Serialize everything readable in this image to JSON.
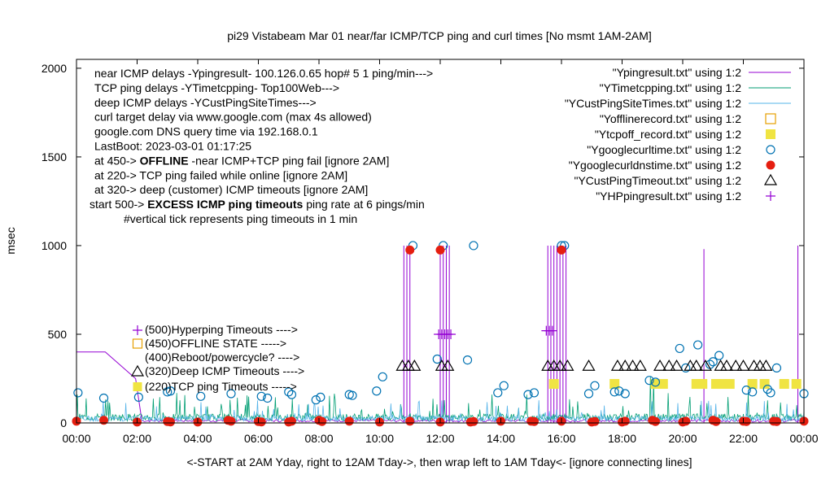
{
  "chart_data": {
    "type": "line",
    "title": "pi29 Vistabeam Mar 01  near/far ICMP/TCP ping and curl times [No msmt 1AM-2AM]",
    "xlabel": "<-START at 2AM Yday, right to 12AM Tday->, then wrap left to 1AM Tday<- [ignore connecting lines]",
    "ylabel": "msec",
    "xlim": [
      0,
      24
    ],
    "ylim": [
      0,
      2050
    ],
    "x_ticks": [
      "00:00",
      "02:00",
      "04:00",
      "06:00",
      "08:00",
      "10:00",
      "12:00",
      "14:00",
      "16:00",
      "18:00",
      "20:00",
      "22:00",
      "00:00"
    ],
    "y_ticks": [
      0,
      500,
      1000,
      1500,
      2000
    ],
    "info_lines": [
      {
        "text": "near ICMP delays -Ypingresult- 100.126.0.65 hop# 5 1 ping/min--->"
      },
      {
        "text": "TCP ping delays -YTimetcpping- Top100Web--->"
      },
      {
        "text": "deep ICMP delays -YCustPingSiteTimes--->"
      },
      {
        "text": "curl target delay via www.google.com (max 4s allowed)"
      },
      {
        "text": "google.com DNS query time via 192.168.0.1"
      },
      {
        "text": "LastBoot: 2023-03-01 01:17:25"
      },
      {
        "pre": "at 450-> ",
        "bold": "OFFLINE",
        "post": " -near ICMP+TCP ping fail [ignore 2AM]"
      },
      {
        "text": "at 220-> TCP ping failed while online [ignore 2AM]"
      },
      {
        "text": "at 320-> deep (customer) ICMP timeouts [ignore 2AM]"
      },
      {
        "pre": "start 500-> ",
        "bold": "EXCESS ICMP ping timeouts",
        "post": "  ping rate at 6 pings/min"
      },
      {
        "text": "#vertical tick represents ping timeouts in 1 min"
      }
    ],
    "level_labels": [
      {
        "label": "(500)Hyperping Timeouts ---->"
      },
      {
        "label": "(450)OFFLINE STATE ----->"
      },
      {
        "label": "(400)Reboot/powercycle? ---->"
      },
      {
        "label": "(320)Deep ICMP Timeouts ---->"
      },
      {
        "label": "(220)TCP ping Timeouts ----->"
      }
    ],
    "legend_position": "top-right",
    "series": [
      {
        "name": "\"Ypingresult.txt\" using 1:2",
        "color": "#9400d3",
        "style": "line",
        "baseline": 10,
        "segments": [
          {
            "x": [
              0,
              0.95,
              1.95,
              2.15
            ],
            "y": [
              400,
              400,
              250,
              20
            ]
          }
        ],
        "spikes": [
          {
            "x": 10.8,
            "y": 1000
          },
          {
            "x": 10.9,
            "y": 1000
          },
          {
            "x": 11.0,
            "y": 980
          },
          {
            "x": 12.0,
            "y": 1000
          },
          {
            "x": 12.1,
            "y": 1000
          },
          {
            "x": 12.2,
            "y": 1000
          },
          {
            "x": 12.3,
            "y": 1000
          },
          {
            "x": 15.55,
            "y": 1000
          },
          {
            "x": 15.65,
            "y": 1000
          },
          {
            "x": 15.75,
            "y": 1000
          },
          {
            "x": 15.85,
            "y": 1000
          },
          {
            "x": 15.95,
            "y": 1000
          },
          {
            "x": 16.05,
            "y": 1000
          },
          {
            "x": 16.15,
            "y": 1000
          },
          {
            "x": 20.7,
            "y": 980
          },
          {
            "x": 23.8,
            "y": 1000
          }
        ]
      },
      {
        "name": "\"YTimetcpping.txt\" using 1:2",
        "color": "#009e73",
        "style": "noise",
        "baseline": 40,
        "amp": 160
      },
      {
        "name": "\"YCustPingSiteTimes.txt\" using 1:2",
        "color": "#56b4e9",
        "style": "noise",
        "baseline": 30,
        "amp": 120
      },
      {
        "name": "\"Yofflinerecord.txt\" using 1:2",
        "color": "#e69f00",
        "style": "open-square",
        "x": [],
        "y": []
      },
      {
        "name": "\"Ytcpoff_record.txt\" using 1:2",
        "color": "#f0e442",
        "style": "filled-square",
        "x": [
          15.75,
          17.75,
          19.1,
          19.35,
          20.45,
          20.65,
          21.1,
          21.3,
          21.55,
          22.3,
          22.7,
          23.35,
          23.75
        ],
        "y": [
          220,
          220,
          220,
          220,
          220,
          220,
          220,
          220,
          220,
          220,
          220,
          220,
          220
        ]
      },
      {
        "name": "\"Ygooglecurltime.txt\" using 1:2",
        "color": "#0072b2",
        "style": "open-circle",
        "x": [
          0.05,
          0.9,
          2.05,
          3.0,
          3.1,
          4.1,
          5.1,
          6.1,
          6.3,
          7.0,
          7.1,
          7.9,
          8.05,
          9.0,
          9.1,
          9.9,
          10.1,
          11.1,
          11.9,
          12.1,
          12.9,
          13.1,
          13.9,
          14.1,
          14.9,
          15.1,
          16.0,
          16.1,
          16.9,
          17.1,
          17.75,
          17.9,
          18.1,
          18.9,
          19.1,
          19.9,
          20.1,
          20.5,
          20.9,
          21.0,
          21.2,
          22.1,
          22.3,
          22.8,
          22.9,
          23.1,
          24.0
        ],
        "y": [
          170,
          140,
          145,
          175,
          180,
          150,
          165,
          150,
          140,
          175,
          160,
          130,
          145,
          160,
          155,
          180,
          260,
          1000,
          360,
          1000,
          355,
          1000,
          170,
          210,
          160,
          170,
          1000,
          1000,
          165,
          210,
          175,
          180,
          165,
          240,
          230,
          420,
          310,
          440,
          330,
          345,
          380,
          185,
          175,
          190,
          170,
          310,
          165
        ]
      },
      {
        "name": "\"Ygooglecurldnstime.txt\" using 1:2",
        "color": "#e51e10",
        "style": "filled-circle",
        "x": [
          0.0,
          0.9,
          2.0,
          3.0,
          3.1,
          4.0,
          5.0,
          5.1,
          6.0,
          6.1,
          7.0,
          7.1,
          8.0,
          8.1,
          9.0,
          10.0,
          11.0,
          11.0,
          12.0,
          12.0,
          13.0,
          13.1,
          14.0,
          15.0,
          15.1,
          16.0,
          16.0,
          17.0,
          17.1,
          18.0,
          18.1,
          19.0,
          19.1,
          20.0,
          20.1,
          21.0,
          21.1,
          22.0,
          22.1,
          23.0,
          23.1,
          24.0
        ],
        "y": [
          10,
          15,
          5,
          8,
          6,
          5,
          15,
          10,
          8,
          6,
          5,
          10,
          15,
          8,
          10,
          5,
          10,
          975,
          5,
          975,
          5,
          8,
          10,
          10,
          8,
          10,
          975,
          5,
          8,
          5,
          10,
          15,
          8,
          5,
          10,
          15,
          8,
          10,
          8,
          10,
          8,
          10
        ]
      },
      {
        "name": "\"YCustPingTimeout.txt\" using 1:2",
        "color": "#000000",
        "style": "open-triangle",
        "x": [
          10.75,
          10.95,
          11.15,
          12.05,
          12.25,
          15.55,
          15.75,
          15.95,
          16.2,
          16.9,
          17.85,
          18.1,
          18.35,
          18.6,
          19.25,
          19.55,
          19.8,
          20.25,
          20.45,
          20.75,
          21.25,
          21.45,
          21.75,
          22.0,
          22.35,
          22.55,
          22.75
        ],
        "y": [
          320,
          320,
          320,
          320,
          320,
          320,
          320,
          320,
          320,
          320,
          320,
          320,
          320,
          320,
          320,
          320,
          320,
          320,
          320,
          320,
          320,
          320,
          320,
          320,
          320,
          320,
          320
        ]
      },
      {
        "name": "\"YHPpingresult.txt\" using 1:2",
        "color": "#9400d3",
        "style": "plus",
        "x": [
          11.95,
          12.05,
          12.15,
          12.25,
          12.35,
          15.5,
          15.6,
          15.7
        ],
        "y": [
          500,
          500,
          500,
          500,
          500,
          520,
          520,
          520
        ]
      }
    ]
  }
}
